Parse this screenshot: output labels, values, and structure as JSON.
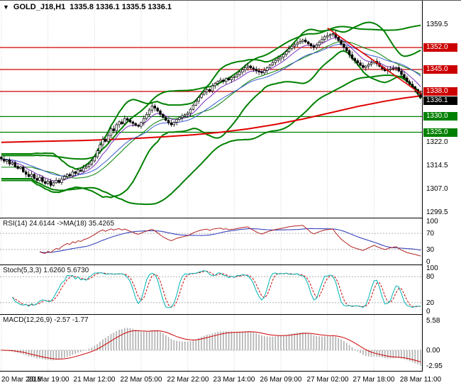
{
  "title_bar": {
    "menu_icon": "▼",
    "symbol": "GOLD_J18,H1",
    "ohlc": "1335.8 1336.1 1335.5 1336.1"
  },
  "x_axis": {
    "labels": [
      "20 Mar 2018",
      "20 Mar 19:00",
      "21 Mar 12:00",
      "22 Mar 05:00",
      "22 Mar 22:00",
      "23 Mar 14:00",
      "26 Mar 09:00",
      "27 Mar 02:00",
      "27 Mar 18:00",
      "28 Mar 11:00"
    ],
    "indices": [
      0,
      17,
      34,
      51,
      68,
      85,
      102,
      119,
      136,
      153
    ]
  },
  "chart_data": [
    {
      "id": "price",
      "type": "candlestick",
      "symbol": "GOLD_J18",
      "timeframe": "H1",
      "ylim": [
        1297.8,
        1366.9
      ],
      "yticks": [
        "1359.5",
        "1322.0",
        "1314.5",
        "1307.0",
        "1299.5"
      ],
      "price_levels": [
        {
          "value": 1352.0,
          "label": "1352.0",
          "kind": "resistance",
          "color": "#cc0000"
        },
        {
          "value": 1345.0,
          "label": "1345.0",
          "kind": "resistance",
          "color": "#cc0000"
        },
        {
          "value": 1338.0,
          "label": "1338.0",
          "kind": "resistance",
          "color": "#cc0000"
        },
        {
          "value": 1330.0,
          "label": "1330.0",
          "kind": "support",
          "color": "#008000"
        },
        {
          "value": 1325.0,
          "label": "1325.0",
          "kind": "support",
          "color": "#008000"
        }
      ],
      "last_price": {
        "value": 1336.1,
        "label": "1336.1",
        "color": "#000000"
      },
      "candle_colors": {
        "up": "#ffffff",
        "down": "#000000",
        "outline": "#000000"
      },
      "closes": [
        1316.5,
        1315.8,
        1316.2,
        1314.9,
        1315.3,
        1314.1,
        1313.5,
        1313.9,
        1312.4,
        1311.6,
        1310.9,
        1311.6,
        1310.3,
        1309.7,
        1310.6,
        1309.3,
        1308.7,
        1309.4,
        1308.1,
        1308.9,
        1309.7,
        1309.0,
        1310.1,
        1310.9,
        1311.6,
        1311.1,
        1312.4,
        1311.9,
        1313.0,
        1312.6,
        1313.6,
        1314.1,
        1314.9,
        1315.9,
        1317.2,
        1319.1,
        1321.0,
        1322.7,
        1322.1,
        1324.0,
        1326.1,
        1325.5,
        1327.4,
        1328.3,
        1327.7,
        1329.4,
        1328.9,
        1328.3,
        1327.8,
        1327.2,
        1326.9,
        1328.1,
        1329.4,
        1330.7,
        1332.1,
        1333.4,
        1332.7,
        1331.8,
        1330.7,
        1329.7,
        1328.8,
        1328.0,
        1327.4,
        1328.2,
        1329.1,
        1329.7,
        1330.2,
        1330.6,
        1331.1,
        1332.3,
        1333.6,
        1334.9,
        1336.1,
        1337.1,
        1337.9,
        1338.6,
        1338.1,
        1339.8,
        1340.6,
        1341.2,
        1341.6,
        1341.2,
        1342.1,
        1341.7,
        1342.5,
        1342.7,
        1343.4,
        1344.2,
        1344.9,
        1345.6,
        1346.1,
        1345.5,
        1345.1,
        1344.6,
        1344.2,
        1343.9,
        1344.7,
        1345.6,
        1346.4,
        1347.2,
        1347.9,
        1348.4,
        1349.0,
        1349.8,
        1350.7,
        1351.6,
        1352.4,
        1352.9,
        1353.4,
        1353.9,
        1354.4,
        1353.8,
        1353.2,
        1352.5,
        1352.0,
        1352.8,
        1353.7,
        1354.6,
        1355.4,
        1355.8,
        1356.1,
        1356.4,
        1355.3,
        1354.2,
        1353.1,
        1352.0,
        1351.0,
        1349.7,
        1348.5,
        1347.8,
        1347.1,
        1346.3,
        1345.6,
        1346.1,
        1346.6,
        1347.1,
        1347.6,
        1346.8,
        1346.0,
        1345.3,
        1344.6,
        1344.9,
        1345.2,
        1345.4,
        1345.6,
        1344.5,
        1343.4,
        1342.3,
        1341.1,
        1340.3,
        1339.5,
        1338.6,
        1337.4,
        1336.1
      ],
      "overlays": {
        "bands_inner": {
          "type": "bollinger",
          "period": 20,
          "deviation": 2.3,
          "color": "#008000",
          "width": 2
        },
        "bands_outer": {
          "type": "bollinger",
          "period": 45,
          "deviation": 2.0,
          "color": "#008000",
          "width": 2
        },
        "band_mid": {
          "type": "sma",
          "period": 20,
          "color": "#008000",
          "width": 1
        },
        "ema_fast": {
          "type": "ema",
          "period": 8,
          "color": "#7b2fbe",
          "width": 1
        },
        "ema_mid": {
          "type": "ema",
          "period": 21,
          "color": "#3b5bd1",
          "width": 1
        },
        "slow_ma": {
          "type": "points",
          "color": "#e00000",
          "width": 2,
          "points": [
            [
              0,
              1321.8
            ],
            [
              10,
              1322.0
            ],
            [
              20,
              1322.2
            ],
            [
              30,
              1322.4
            ],
            [
              40,
              1322.7
            ],
            [
              50,
              1323.1
            ],
            [
              60,
              1323.6
            ],
            [
              70,
              1324.2
            ],
            [
              80,
              1325.0
            ],
            [
              90,
              1326.1
            ],
            [
              100,
              1327.5
            ],
            [
              110,
              1329.2
            ],
            [
              120,
              1331.2
            ],
            [
              130,
              1333.2
            ],
            [
              140,
              1334.9
            ],
            [
              147,
              1335.9
            ],
            [
              153,
              1336.6
            ]
          ]
        },
        "trendline": {
          "type": "segment",
          "color": "#e00000",
          "width": 1.6,
          "from": [
            119,
            1358.2
          ],
          "to": [
            154,
            1337.0
          ]
        }
      }
    },
    {
      "id": "rsi",
      "type": "line",
      "label": "RSI(14) 24.6144  ->MA(18) 35.4265",
      "params": {
        "rsi_period": 14,
        "ma_period": 18
      },
      "current": {
        "rsi": 24.6144,
        "ma": 35.4265
      },
      "ylim": [
        0,
        100
      ],
      "yticks": [
        "100",
        "70",
        "30",
        "0"
      ],
      "levels": [
        70,
        30
      ],
      "colors": {
        "rsi": "#b22222",
        "ma": "#3944bc"
      }
    },
    {
      "id": "stoch",
      "type": "line",
      "label": "Stoch(5,3,3) 1.6260 5.6730",
      "params": {
        "k": 5,
        "slowing": 3,
        "d": 3
      },
      "current": {
        "k": 1.626,
        "d": 5.673
      },
      "ylim": [
        0,
        100
      ],
      "yticks": [
        "100",
        "80",
        "20",
        "0"
      ],
      "levels": [
        80,
        20
      ],
      "colors": {
        "k": "#00b3b3",
        "d": "#cc0000"
      }
    },
    {
      "id": "macd",
      "type": "histogram",
      "label": "MACD(12,26,9) -2.57 -1.77",
      "params": {
        "fast": 12,
        "slow": 26,
        "signal": 9
      },
      "current": {
        "macd": -2.57,
        "signal": -1.77
      },
      "ylim": [
        -3.5,
        6.3
      ],
      "yticks": [
        "5.58",
        "0.00",
        "-2.95"
      ],
      "levels": [
        0
      ],
      "colors": {
        "hist": "#b2b2b2",
        "signal": "#cc0000"
      }
    }
  ]
}
